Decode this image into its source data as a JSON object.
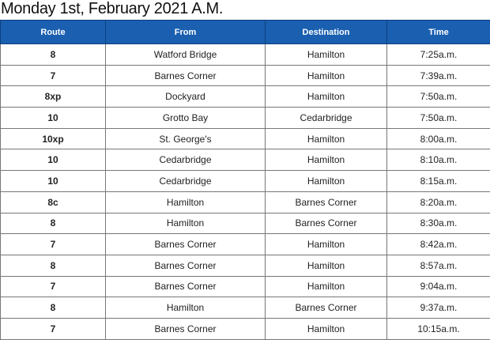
{
  "title": "Monday 1st, February 2021 A.M.",
  "columns": [
    "Route",
    "From",
    "Destination",
    "Time"
  ],
  "rows": [
    [
      "8",
      "Watford Bridge",
      "Hamilton",
      "7:25a.m."
    ],
    [
      "7",
      "Barnes Corner",
      "Hamilton",
      "7:39a.m."
    ],
    [
      "8xp",
      "Dockyard",
      "Hamilton",
      "7:50a.m."
    ],
    [
      "10",
      "Grotto Bay",
      "Cedarbridge",
      "7:50a.m."
    ],
    [
      "10xp",
      "St. George's",
      "Hamilton",
      "8:00a.m."
    ],
    [
      "10",
      "Cedarbridge",
      "Hamilton",
      "8:10a.m."
    ],
    [
      "10",
      "Cedarbridge",
      "Hamilton",
      "8:15a.m."
    ],
    [
      "8c",
      "Hamilton",
      "Barnes Corner",
      "8:20a.m."
    ],
    [
      "8",
      "Hamilton",
      "Barnes Corner",
      "8:30a.m."
    ],
    [
      "7",
      "Barnes Corner",
      "Hamilton",
      "8:42a.m."
    ],
    [
      "8",
      "Barnes Corner",
      "Hamilton",
      "8:57a.m."
    ],
    [
      "7",
      "Barnes Corner",
      "Hamilton",
      "9:04a.m."
    ],
    [
      "8",
      "Hamilton",
      "Barnes Corner",
      "9:37a.m."
    ],
    [
      "7",
      "Barnes Corner",
      "Hamilton",
      "10:15a.m."
    ]
  ]
}
